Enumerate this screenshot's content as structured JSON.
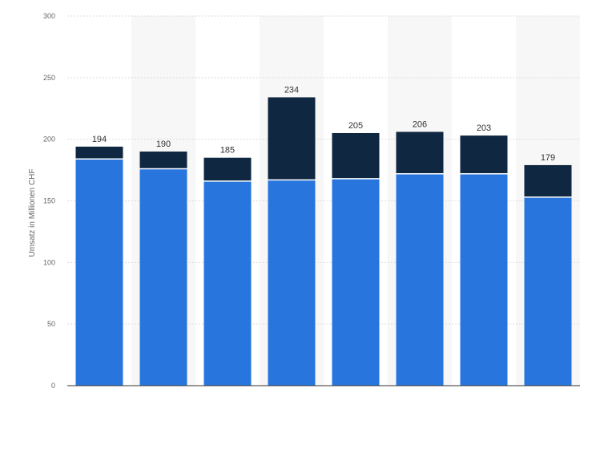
{
  "chart_data": {
    "type": "bar",
    "stacked": true,
    "categories": [
      "",
      "",
      "",
      "",
      "",
      "",
      "",
      ""
    ],
    "series": [
      {
        "values": [
          184,
          176,
          166,
          167,
          168,
          172,
          172,
          153
        ]
      },
      {
        "values": [
          10,
          14,
          19,
          67,
          37,
          34,
          31,
          26
        ]
      }
    ],
    "totals": [
      "194",
      "190",
      "185",
      "234",
      "205",
      "206",
      "203",
      "179"
    ],
    "ylabel": "Umsatz in Millionen CHF",
    "ylim": [
      0,
      300
    ],
    "yticks": [
      "0",
      "50",
      "100",
      "150",
      "200",
      "250",
      "300"
    ],
    "grid": true,
    "legend": "none",
    "colors": {
      "series_1": "#2876dd",
      "series_2": "#0f2740",
      "band": "#f7f7f7",
      "grid": "#dddddd",
      "axis": "#333333"
    }
  }
}
